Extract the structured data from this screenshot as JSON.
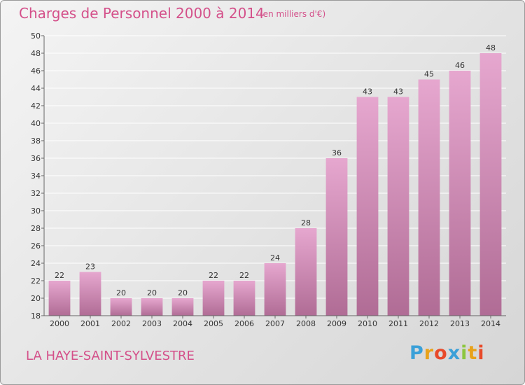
{
  "header": {
    "title": "Charges de Personnel 2000 à 2014",
    "unit": "(en milliers d'€)"
  },
  "footer": {
    "commune": "LA HAYE-SAINT-SYLVESTRE",
    "logo": {
      "letters": [
        "P",
        "r",
        "o",
        "x",
        "i",
        "t",
        "i"
      ],
      "colors": [
        "#3aa0d8",
        "#e8a21a",
        "#e84a2a",
        "#3aa0d8",
        "#8cc63e",
        "#e8a21a",
        "#e84a2a"
      ]
    }
  },
  "colors": {
    "title": "#d4508a",
    "bar_top": "#e6a7cf",
    "bar_bottom": "#b06c95",
    "grid": "#ffffff"
  },
  "chart_data": {
    "type": "bar",
    "title": "Charges de Personnel 2000 à 2014",
    "subtitle": "(en milliers d'€)",
    "categories": [
      "2000",
      "2001",
      "2002",
      "2003",
      "2004",
      "2005",
      "2006",
      "2007",
      "2008",
      "2009",
      "2010",
      "2011",
      "2012",
      "2013",
      "2014"
    ],
    "values": [
      22,
      23,
      20,
      20,
      20,
      22,
      22,
      24,
      28,
      36,
      43,
      43,
      45,
      46,
      48
    ],
    "ylim": [
      18,
      50
    ],
    "yticks": [
      18,
      20,
      22,
      24,
      26,
      28,
      30,
      32,
      34,
      36,
      38,
      40,
      42,
      44,
      46,
      48,
      50
    ],
    "grid": true,
    "legend": "none"
  }
}
